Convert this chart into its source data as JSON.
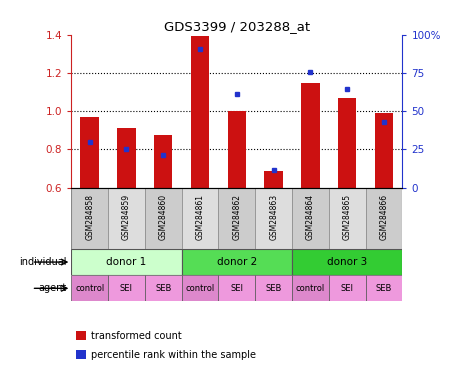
{
  "title": "GDS3399 / 203288_at",
  "samples": [
    "GSM284858",
    "GSM284859",
    "GSM284860",
    "GSM284861",
    "GSM284862",
    "GSM284863",
    "GSM284864",
    "GSM284865",
    "GSM284866"
  ],
  "transformed_count": [
    0.97,
    0.91,
    0.875,
    1.395,
    1.0,
    0.685,
    1.145,
    1.07,
    0.99
  ],
  "percentile_rank_left": [
    0.84,
    0.8,
    0.77,
    1.325,
    1.09,
    0.695,
    1.205,
    1.115,
    0.945
  ],
  "ylim_left": [
    0.6,
    1.4
  ],
  "ylim_right": [
    0,
    100
  ],
  "yticks_left": [
    0.6,
    0.8,
    1.0,
    1.2,
    1.4
  ],
  "yticks_right": [
    0,
    25,
    50,
    75,
    100
  ],
  "ytick_right_labels": [
    "0",
    "25",
    "50",
    "75",
    "100%"
  ],
  "bar_color": "#cc1111",
  "dot_color": "#2233cc",
  "bar_width": 0.5,
  "individuals": [
    {
      "label": "donor 1",
      "span": [
        0,
        3
      ],
      "color": "#ccffcc"
    },
    {
      "label": "donor 2",
      "span": [
        3,
        6
      ],
      "color": "#55dd55"
    },
    {
      "label": "donor 3",
      "span": [
        6,
        9
      ],
      "color": "#33cc33"
    }
  ],
  "agents": [
    "control",
    "SEI",
    "SEB",
    "control",
    "SEI",
    "SEB",
    "control",
    "SEI",
    "SEB"
  ],
  "agent_colors": [
    "#dd88cc",
    "#ee99dd",
    "#ee99dd",
    "#dd88cc",
    "#ee99dd",
    "#ee99dd",
    "#dd88cc",
    "#ee99dd",
    "#ee99dd"
  ],
  "individual_label": "individual",
  "agent_label": "agent",
  "legend_red": "transformed count",
  "legend_blue": "percentile rank within the sample",
  "bg_color": "#ffffff",
  "sample_bg_even": "#cccccc",
  "sample_bg_odd": "#dddddd",
  "grid_yticks": [
    0.8,
    1.0,
    1.2
  ]
}
